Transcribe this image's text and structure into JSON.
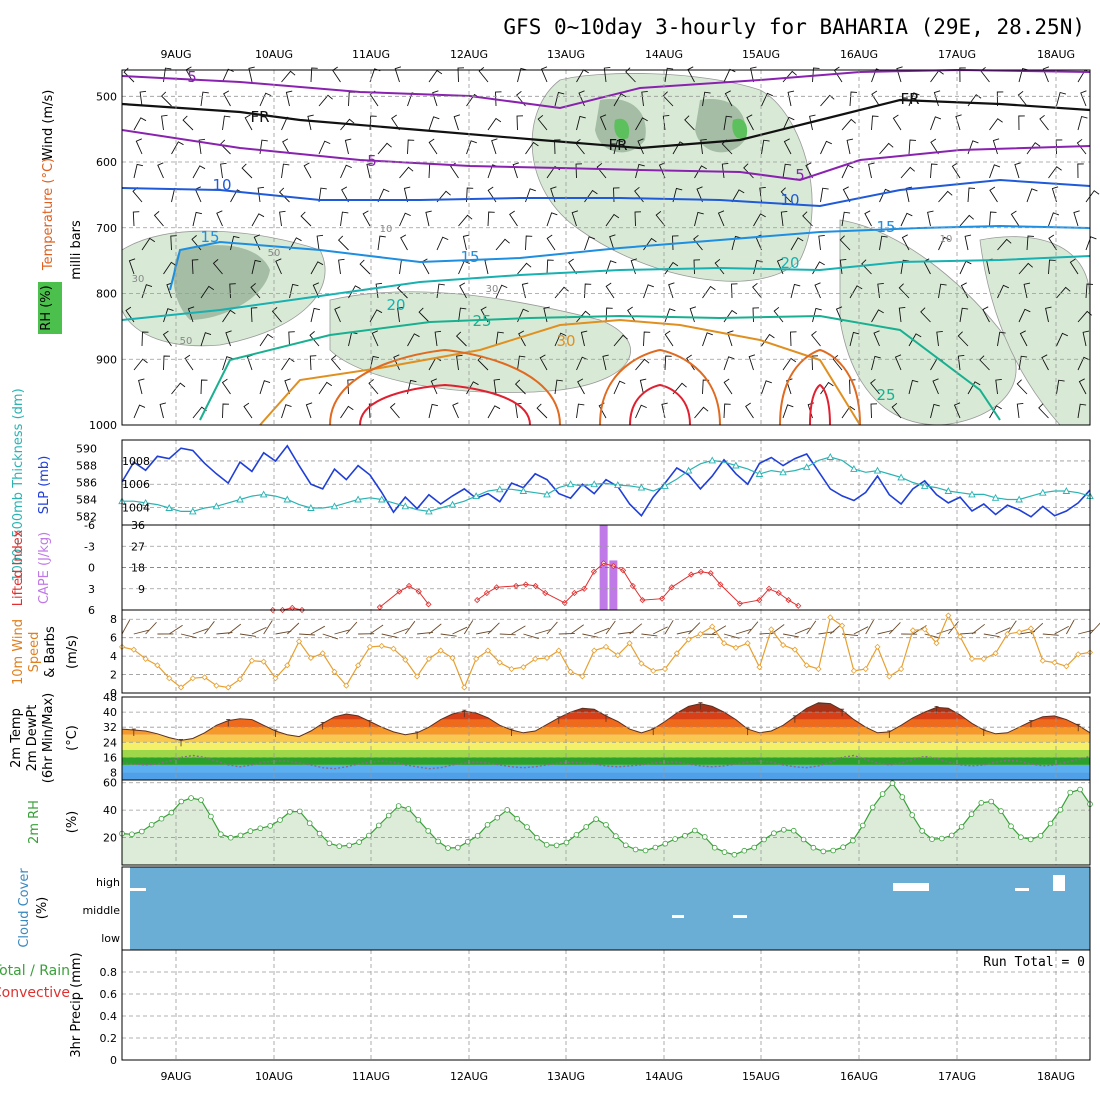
{
  "title": "GFS 0~10day 3-hourly for BAHARIA (29E, 28.25N)",
  "dates": [
    "9AUG",
    "10AUG",
    "11AUG",
    "12AUG",
    "13AUG",
    "14AUG",
    "15AUG",
    "16AUG",
    "17AUG",
    "18AUG"
  ],
  "colors": {
    "slp": "#1f3fd8",
    "thickness": "#2bb3b3",
    "li": "#e03030",
    "cape": "#c07ae8",
    "wind": "#e8a030",
    "temp": "#7a3a20",
    "rh": "#3aa03a",
    "cloud": "#6aaed6"
  },
  "chart_data": [
    {
      "type": "heatmap",
      "panel": "upper-air cross section",
      "ylabel": "milli bars",
      "side_labels": [
        "Wind (m/s)",
        "Temperature (°C)",
        "RH (%)"
      ],
      "yticks": [
        "500",
        "600",
        "700",
        "800",
        "900",
        "1000"
      ],
      "ylim": [
        1000,
        460
      ],
      "isotherm_labels": [
        "5",
        "5",
        "5",
        "10",
        "10",
        "15",
        "15",
        "15",
        "20",
        "20",
        "25",
        "25",
        "30",
        "FR",
        "FR",
        "FR"
      ],
      "rh_contour_labels": [
        "30",
        "30",
        "50",
        "50",
        "10",
        "10"
      ]
    },
    {
      "type": "line",
      "panel": "slp-thickness",
      "ylabel_left": "1000~500mb Thickness (dm)",
      "ylabel_right": "SLP (mb)",
      "yticks_left": [
        "582",
        "584",
        "586",
        "588",
        "590"
      ],
      "yticks_right": [
        "1004",
        "1006",
        "1008"
      ],
      "series": [
        {
          "name": "SLP (mb)",
          "values": [
            1006.2,
            1007.9,
            1007.2,
            1008.4,
            1008.2,
            1009.1,
            1008.9,
            1007.8,
            1006.9,
            1006.1,
            1007.9,
            1007.1,
            1008.7,
            1008.0,
            1009.3,
            1007.6,
            1006.0,
            1005.6,
            1007.3,
            1006.4,
            1007.6,
            1006.8,
            1005.3,
            1003.6,
            1004.9,
            1003.9,
            1005.1,
            1004.3,
            1005.0,
            1005.6,
            1004.8,
            1005.2,
            1004.5,
            1006.1,
            1005.7,
            1006.9,
            1006.4,
            1005.2,
            1004.8,
            1006.0,
            1005.2,
            1006.4,
            1005.8,
            1004.3,
            1003.3,
            1004.9,
            1006.1,
            1007.4,
            1006.8,
            1005.6,
            1006.7,
            1008.1,
            1006.9,
            1006.0,
            1007.8,
            1008.3,
            1007.6,
            1008.2,
            1008.6,
            1007.1,
            1005.6,
            1005.0,
            1004.6,
            1005.3,
            1006.7,
            1005.1,
            1004.3,
            1005.6,
            1006.3,
            1005.1,
            1004.4,
            1004.9,
            1003.7,
            1004.3,
            1003.4,
            1004.2,
            1003.8,
            1003.2,
            1004.1,
            1003.3,
            1003.7,
            1004.4,
            1005.5
          ]
        },
        {
          "name": "1000~500mb Thickness (dm)",
          "values": [
            583.8,
            583.8,
            583.6,
            583.4,
            583.0,
            582.6,
            582.6,
            583.0,
            583.2,
            583.6,
            584.0,
            584.4,
            584.6,
            584.4,
            584.0,
            583.4,
            583.0,
            583.0,
            583.2,
            583.6,
            584.0,
            584.2,
            584.0,
            583.6,
            583.2,
            582.8,
            582.6,
            583.0,
            583.4,
            583.8,
            584.4,
            585.0,
            585.2,
            585.2,
            585.0,
            584.8,
            584.6,
            585.4,
            585.8,
            585.6,
            585.8,
            585.9,
            585.7,
            585.6,
            585.4,
            585.0,
            585.6,
            586.4,
            587.4,
            588.2,
            588.6,
            588.4,
            588.0,
            587.6,
            587.0,
            587.4,
            587.2,
            587.4,
            587.8,
            588.6,
            589.0,
            588.6,
            587.6,
            587.2,
            587.4,
            587.0,
            586.6,
            586.0,
            585.6,
            585.4,
            585.0,
            584.8,
            584.6,
            584.6,
            584.2,
            584.0,
            584.0,
            584.4,
            584.8,
            585.0,
            585.0,
            584.8,
            584.4
          ]
        }
      ]
    },
    {
      "type": "bar",
      "panel": "lifted index / cape",
      "ylabel_left": "Lifted Index",
      "ylabel_right": "CAPE (J/kg)",
      "yticks_left": [
        "-6",
        "-3",
        "0",
        "3",
        "6"
      ],
      "yticks_right": [
        "36",
        "27",
        "18",
        "9"
      ],
      "cape_bars": [
        {
          "x": 13.4,
          "value": 36
        },
        {
          "x": 13.5,
          "value": 21
        }
      ],
      "li_values": [
        [
          10.0,
          6.0
        ],
        [
          10.1,
          6.0
        ],
        [
          10.2,
          5.7
        ],
        [
          10.3,
          6.0
        ],
        [
          11.1,
          5.6
        ],
        [
          11.3,
          3.4
        ],
        [
          11.4,
          2.6
        ],
        [
          11.5,
          3.4
        ],
        [
          11.6,
          5.2
        ],
        [
          12.1,
          4.6
        ],
        [
          12.2,
          3.6
        ],
        [
          12.3,
          2.8
        ],
        [
          12.5,
          2.6
        ],
        [
          12.6,
          2.4
        ],
        [
          12.7,
          2.6
        ],
        [
          12.8,
          3.6
        ],
        [
          13.0,
          5.0
        ],
        [
          13.1,
          3.6
        ],
        [
          13.2,
          3.0
        ],
        [
          13.3,
          0.6
        ],
        [
          13.4,
          -0.6
        ],
        [
          13.5,
          -0.2
        ],
        [
          13.6,
          0.4
        ],
        [
          13.7,
          2.6
        ],
        [
          13.8,
          4.6
        ],
        [
          14.0,
          4.4
        ],
        [
          14.1,
          2.8
        ],
        [
          14.3,
          1.0
        ],
        [
          14.4,
          0.6
        ],
        [
          14.5,
          0.8
        ],
        [
          14.6,
          2.4
        ],
        [
          14.8,
          5.1
        ],
        [
          15.0,
          4.6
        ],
        [
          15.1,
          3.0
        ],
        [
          15.2,
          3.6
        ],
        [
          15.3,
          4.6
        ],
        [
          15.4,
          5.4
        ]
      ]
    },
    {
      "type": "line",
      "panel": "10m wind",
      "ylabel": "10m Wind Speed & Barbs (m/s)",
      "yticks": [
        "0",
        "2",
        "4",
        "6",
        "8"
      ],
      "ylim": [
        0,
        9
      ],
      "series": [
        {
          "name": "10m Wind Speed",
          "values": [
            5.0,
            4.7,
            3.7,
            3.0,
            1.6,
            0.6,
            1.6,
            1.7,
            0.8,
            0.6,
            1.5,
            3.5,
            3.4,
            1.6,
            3.0,
            5.6,
            3.8,
            4.3,
            2.3,
            0.8,
            3.0,
            5.0,
            5.1,
            4.8,
            3.6,
            1.8,
            3.7,
            4.6,
            3.8,
            0.6,
            3.7,
            4.6,
            3.3,
            2.6,
            2.8,
            3.7,
            3.8,
            4.6,
            2.3,
            1.8,
            4.6,
            5.0,
            4.1,
            5.4,
            3.2,
            2.4,
            2.6,
            4.3,
            5.8,
            6.4,
            7.2,
            5.4,
            4.9,
            5.4,
            2.8,
            6.9,
            5.2,
            4.7,
            3.0,
            2.6,
            8.2,
            7.3,
            2.4,
            2.6,
            5.0,
            1.8,
            2.6,
            6.8,
            6.9,
            5.4,
            8.4,
            6.1,
            3.7,
            3.7,
            4.3,
            6.4,
            6.6,
            7.0,
            3.5,
            3.3,
            2.9,
            4.2,
            4.4
          ]
        }
      ]
    },
    {
      "type": "area",
      "panel": "2m temp / dewpoint",
      "ylabel": "2m Temp 2m DewPt (6hr Min/Max) (°C)",
      "yticks": [
        "8",
        "16",
        "24",
        "32",
        "40",
        "48"
      ],
      "ylim": [
        4,
        48
      ],
      "series": [
        {
          "name": "2m Temp",
          "values": [
            31,
            30.5,
            30,
            28.5,
            26.5,
            25,
            26,
            29,
            33,
            35.5,
            36.5,
            36,
            33,
            30,
            28,
            27,
            30,
            34,
            37.5,
            39,
            38,
            35,
            32,
            29.5,
            28,
            29,
            32,
            36,
            39,
            40.5,
            39.5,
            37,
            33,
            30.5,
            29,
            30,
            33.5,
            37,
            40,
            42,
            41.5,
            38,
            35,
            31,
            29,
            31,
            35,
            39.5,
            43,
            44.5,
            43,
            40,
            36,
            31,
            29,
            30,
            33,
            37.5,
            42,
            45,
            44.5,
            41,
            36,
            32,
            29,
            29.5,
            33,
            37,
            40,
            42.5,
            42,
            38.5,
            34,
            30.5,
            28.5,
            29,
            32,
            35,
            37.5,
            38,
            36,
            33,
            29
          ]
        },
        {
          "name": "2m DewPt",
          "values": [
            13,
            12.5,
            12,
            12.5,
            14,
            16,
            17,
            16,
            14,
            12,
            11,
            12,
            13.5,
            14,
            14,
            13,
            12,
            10.5,
            10,
            11,
            12.5,
            13.5,
            14,
            13.5,
            12,
            11,
            10,
            10.5,
            12,
            13,
            13.5,
            13,
            12,
            11,
            10.5,
            11,
            12,
            13,
            13.5,
            13,
            12.5,
            11.5,
            11,
            11.5,
            12,
            13,
            13.5,
            13.5,
            12.5,
            11.5,
            11,
            11.5,
            12.5,
            13.5,
            14,
            13.5,
            12,
            11,
            10.5,
            11.5,
            13.5,
            16,
            17,
            15,
            13,
            12,
            13,
            15,
            16.5,
            15.5,
            13.5,
            12,
            11.5,
            12,
            13.5,
            14.5,
            14,
            12.5,
            11.5,
            12,
            13.5,
            15,
            16.5
          ]
        }
      ]
    },
    {
      "type": "area",
      "panel": "2m rh",
      "ylabel": "2m RH (%)",
      "yticks": [
        "20",
        "40",
        "60"
      ],
      "ylim": [
        0,
        62
      ],
      "series": [
        {
          "name": "2m RH",
          "values": [
            22.9,
            22.4,
            24.4,
            29.3,
            33.8,
            38.2,
            46.3,
            48.9,
            47.4,
            35.4,
            22.5,
            19.9,
            21.6,
            24.7,
            26.8,
            28.5,
            32.8,
            38.7,
            39.1,
            30.5,
            22.9,
            15.8,
            13.7,
            14.3,
            16.7,
            21.5,
            28.9,
            36.1,
            43.0,
            40.9,
            33.0,
            24.9,
            17.2,
            12.4,
            12.7,
            16.9,
            21.3,
            29.3,
            34.5,
            40.2,
            33.8,
            27.7,
            19.9,
            14.7,
            14.3,
            16.4,
            22.0,
            27.8,
            33.5,
            29.3,
            21.1,
            14.4,
            11.3,
            10.6,
            12.8,
            15.6,
            19.0,
            21.4,
            25.2,
            20.5,
            12.6,
            9.4,
            7.5,
            10.4,
            12.8,
            18.6,
            23.2,
            25.7,
            25.0,
            18.6,
            12.6,
            9.9,
            10.6,
            13.0,
            17.8,
            28.8,
            42.0,
            51.8,
            59.7,
            49.6,
            36.5,
            24.9,
            18.8,
            19.3,
            21.6,
            27.9,
            37.1,
            45.4,
            46.3,
            39.3,
            28.3,
            20.3,
            18.7,
            21.3,
            30.3,
            40.3,
            52.9,
            55.1,
            44.4
          ]
        }
      ]
    },
    {
      "type": "heatmap",
      "panel": "cloud cover",
      "ylabel": "Cloud Cover (%)",
      "yticks": [
        "high",
        "middle",
        "low"
      ]
    },
    {
      "type": "bar",
      "panel": "3hr precip",
      "ylabel_left": "3hr Precip (mm)",
      "ylabel_side": [
        "Total / Rain",
        "Convective"
      ],
      "yticks": [
        "0",
        "0.2",
        "0.4",
        "0.6",
        "0.8"
      ],
      "ylim": [
        0,
        1.0
      ],
      "annotation": "Run Total = 0",
      "values": []
    }
  ]
}
